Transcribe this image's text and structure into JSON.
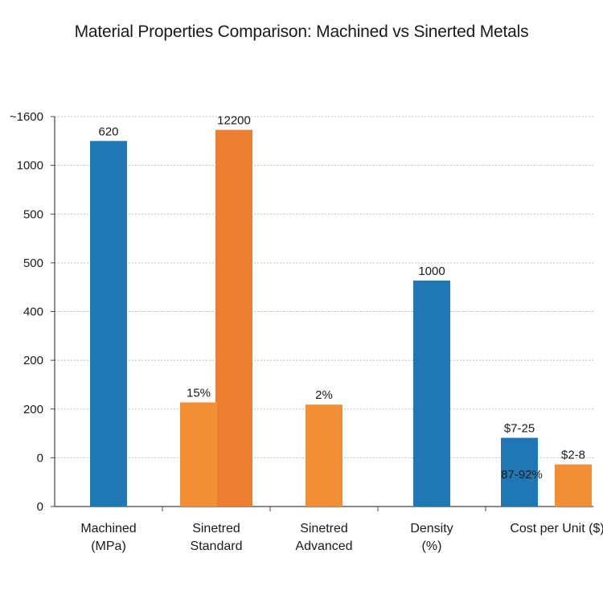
{
  "chart_data": {
    "type": "bar",
    "title": "Material Properties Comparison: Machined vs Sinerted Metals",
    "xlabel": "",
    "ylabel": "",
    "y_tick_labels": [
      "0",
      "0",
      "200",
      "200",
      "400",
      "500",
      "500",
      "1000",
      "~1600"
    ],
    "categories": [
      [
        "Machined",
        "(MPa)"
      ],
      [
        "Sinetred",
        "Standard"
      ],
      [
        "Sinetred",
        "Advanced"
      ],
      [
        "Density",
        "(%)"
      ],
      [
        "Cost per Unit ($)"
      ]
    ],
    "grid": true,
    "legend": "none",
    "colors": {
      "blue": "#1f77b4",
      "orange": "#ed7d31",
      "orange_light": "#f28e35"
    },
    "bars": [
      {
        "category_index": 0,
        "slot": "center",
        "series": "blue",
        "value": 1490,
        "label": "620"
      },
      {
        "category_index": 1,
        "slot": "right",
        "series": "orange",
        "value": 1540,
        "label": "12200"
      },
      {
        "category_index": 1,
        "slot": "left",
        "series": "orange_light",
        "value": 310,
        "label": "15%"
      },
      {
        "category_index": 2,
        "slot": "center",
        "series": "orange_light",
        "value": 300,
        "label": "2%"
      },
      {
        "category_index": 3,
        "slot": "center",
        "series": "blue",
        "value": 860,
        "label": "1000"
      },
      {
        "category_index": 4,
        "slot": "left",
        "series": "blue",
        "value": 150,
        "label": "$7-25"
      },
      {
        "category_index": 4,
        "slot": "right",
        "series": "orange_light",
        "value": 30,
        "label": "$2-8"
      }
    ],
    "annotations": [
      {
        "text": "87-92%",
        "category_index": 4,
        "value": -15
      }
    ],
    "ylim": [
      -160,
      1600
    ]
  }
}
